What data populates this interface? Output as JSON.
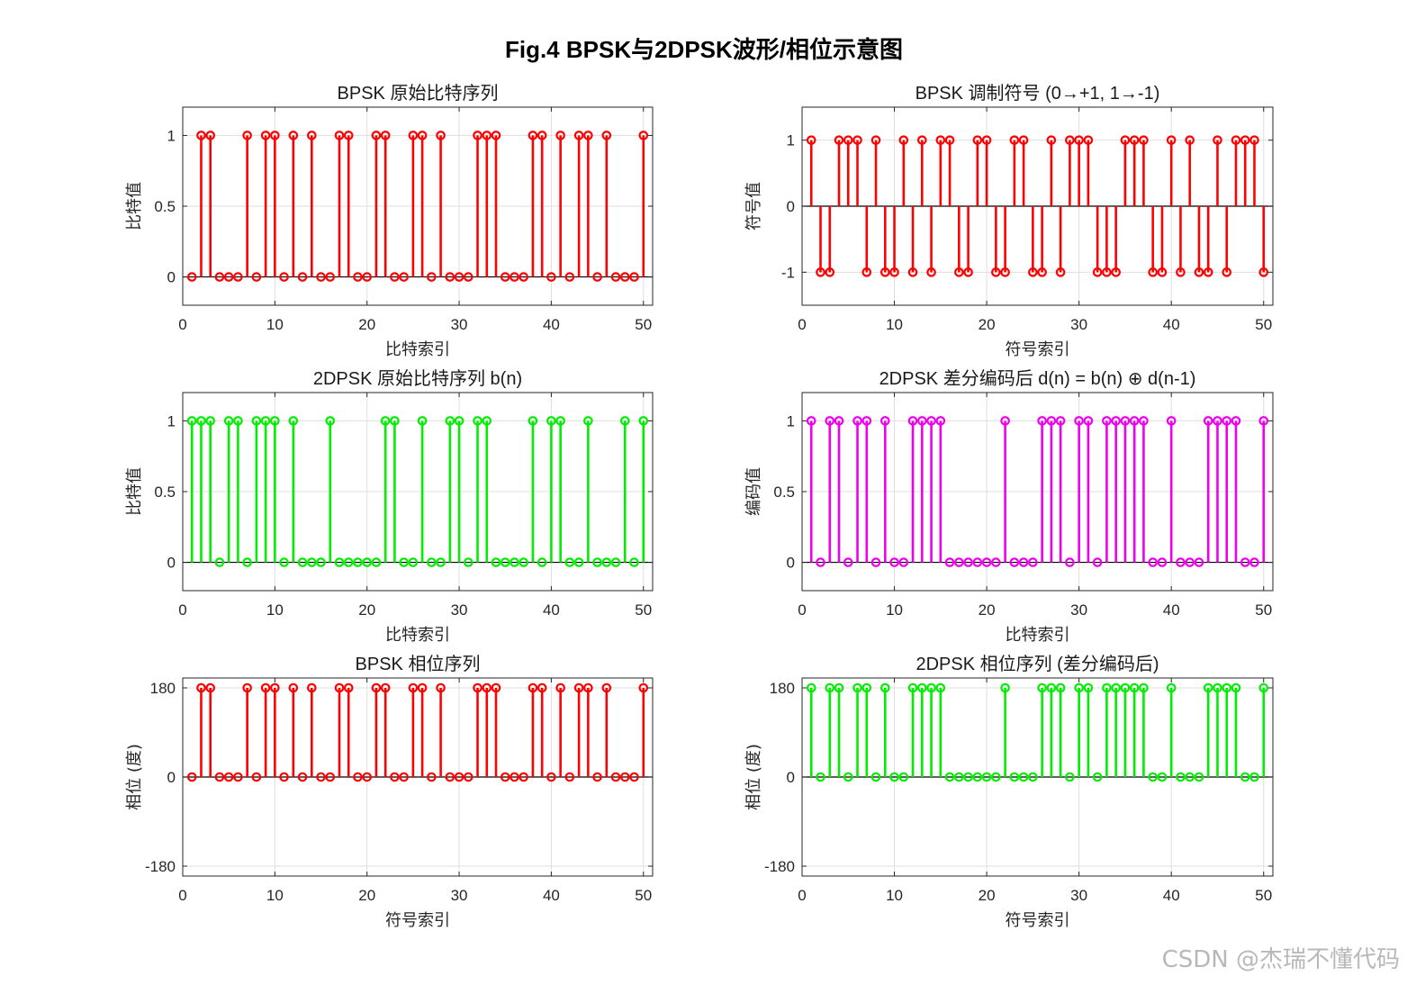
{
  "figure_title": "Fig.4 BPSK与2DPSK波形/相位示意图",
  "watermark": "CSDN @杰瑞不懂代码",
  "chart_data": [
    {
      "type": "stem",
      "title": "BPSK 原始比特序列",
      "xlabel": "比特索引",
      "ylabel": "比特值",
      "color": "#ff0000",
      "xlim": [
        0,
        51
      ],
      "ylim": [
        -0.2,
        1.2
      ],
      "xticks": [
        0,
        10,
        20,
        30,
        40,
        50
      ],
      "yticks": [
        0,
        0.5,
        1
      ],
      "ytick_labels": [
        "0",
        "0.5",
        "1"
      ],
      "grid": true,
      "values": [
        0,
        1,
        1,
        0,
        0,
        0,
        1,
        0,
        1,
        1,
        0,
        1,
        0,
        1,
        0,
        0,
        1,
        1,
        0,
        0,
        1,
        1,
        0,
        0,
        1,
        1,
        0,
        1,
        0,
        0,
        0,
        1,
        1,
        1,
        0,
        0,
        0,
        1,
        1,
        0,
        1,
        0,
        1,
        1,
        0,
        1,
        0,
        0,
        0,
        1
      ]
    },
    {
      "type": "stem",
      "title": "BPSK 调制符号 (0→+1, 1→-1)",
      "xlabel": "符号索引",
      "ylabel": "符号值",
      "color": "#ff0000",
      "xlim": [
        0,
        51
      ],
      "ylim": [
        -1.5,
        1.5
      ],
      "xticks": [
        0,
        10,
        20,
        30,
        40,
        50
      ],
      "yticks": [
        -1,
        0,
        1
      ],
      "ytick_labels": [
        "-1",
        "0",
        "1"
      ],
      "grid": true,
      "values": [
        1,
        -1,
        -1,
        1,
        1,
        1,
        -1,
        1,
        -1,
        -1,
        1,
        -1,
        1,
        -1,
        1,
        1,
        -1,
        -1,
        1,
        1,
        -1,
        -1,
        1,
        1,
        -1,
        -1,
        1,
        -1,
        1,
        1,
        1,
        -1,
        -1,
        -1,
        1,
        1,
        1,
        -1,
        -1,
        1,
        -1,
        1,
        -1,
        -1,
        1,
        -1,
        1,
        1,
        1,
        -1
      ]
    },
    {
      "type": "stem",
      "title": "2DPSK 原始比特序列 b(n)",
      "xlabel": "比特索引",
      "ylabel": "比特值",
      "color": "#00ee00",
      "xlim": [
        0,
        51
      ],
      "ylim": [
        -0.2,
        1.2
      ],
      "xticks": [
        0,
        10,
        20,
        30,
        40,
        50
      ],
      "yticks": [
        0,
        0.5,
        1
      ],
      "ytick_labels": [
        "0",
        "0.5",
        "1"
      ],
      "grid": true,
      "values": [
        1,
        1,
        1,
        0,
        1,
        1,
        0,
        1,
        1,
        1,
        0,
        1,
        0,
        0,
        0,
        1,
        0,
        0,
        0,
        0,
        0,
        1,
        1,
        0,
        0,
        1,
        0,
        0,
        1,
        1,
        0,
        1,
        1,
        0,
        0,
        0,
        0,
        1,
        0,
        1,
        1,
        0,
        0,
        1,
        0,
        0,
        0,
        1,
        0,
        1
      ]
    },
    {
      "type": "stem",
      "title": "2DPSK 差分编码后 d(n) = b(n) ⊕ d(n-1)",
      "xlabel": "比特索引",
      "ylabel": "编码值",
      "color": "#ee00ee",
      "xlim": [
        0,
        51
      ],
      "ylim": [
        -0.2,
        1.2
      ],
      "xticks": [
        0,
        10,
        20,
        30,
        40,
        50
      ],
      "yticks": [
        0,
        0.5,
        1
      ],
      "ytick_labels": [
        "0",
        "0.5",
        "1"
      ],
      "grid": true,
      "values": [
        1,
        0,
        1,
        1,
        0,
        1,
        1,
        0,
        1,
        0,
        0,
        1,
        1,
        1,
        1,
        0,
        0,
        0,
        0,
        0,
        0,
        1,
        0,
        0,
        0,
        1,
        1,
        1,
        0,
        1,
        1,
        0,
        1,
        1,
        1,
        1,
        1,
        0,
        0,
        1,
        0,
        0,
        0,
        1,
        1,
        1,
        1,
        0,
        0,
        1
      ]
    },
    {
      "type": "stem",
      "title": "BPSK 相位序列",
      "xlabel": "符号索引",
      "ylabel": "相位 (度)",
      "color": "#ff0000",
      "xlim": [
        0,
        51
      ],
      "ylim": [
        -200,
        200
      ],
      "xticks": [
        0,
        10,
        20,
        30,
        40,
        50
      ],
      "yticks": [
        -180,
        0,
        180
      ],
      "ytick_labels": [
        "-180",
        "0",
        "180"
      ],
      "grid": true,
      "values": [
        0,
        180,
        180,
        0,
        0,
        0,
        180,
        0,
        180,
        180,
        0,
        180,
        0,
        180,
        0,
        0,
        180,
        180,
        0,
        0,
        180,
        180,
        0,
        0,
        180,
        180,
        0,
        180,
        0,
        0,
        0,
        180,
        180,
        180,
        0,
        0,
        0,
        180,
        180,
        0,
        180,
        0,
        180,
        180,
        0,
        180,
        0,
        0,
        0,
        180
      ]
    },
    {
      "type": "stem",
      "title": "2DPSK 相位序列 (差分编码后)",
      "xlabel": "符号索引",
      "ylabel": "相位 (度)",
      "color": "#00ee00",
      "xlim": [
        0,
        51
      ],
      "ylim": [
        -200,
        200
      ],
      "xticks": [
        0,
        10,
        20,
        30,
        40,
        50
      ],
      "yticks": [
        -180,
        0,
        180
      ],
      "ytick_labels": [
        "-180",
        "0",
        "180"
      ],
      "grid": true,
      "values": [
        180,
        0,
        180,
        180,
        0,
        180,
        180,
        0,
        180,
        0,
        0,
        180,
        180,
        180,
        180,
        0,
        0,
        0,
        0,
        0,
        0,
        180,
        0,
        0,
        0,
        180,
        180,
        180,
        0,
        180,
        180,
        0,
        180,
        180,
        180,
        180,
        180,
        0,
        0,
        180,
        0,
        0,
        0,
        180,
        180,
        180,
        180,
        0,
        0,
        180
      ]
    }
  ]
}
